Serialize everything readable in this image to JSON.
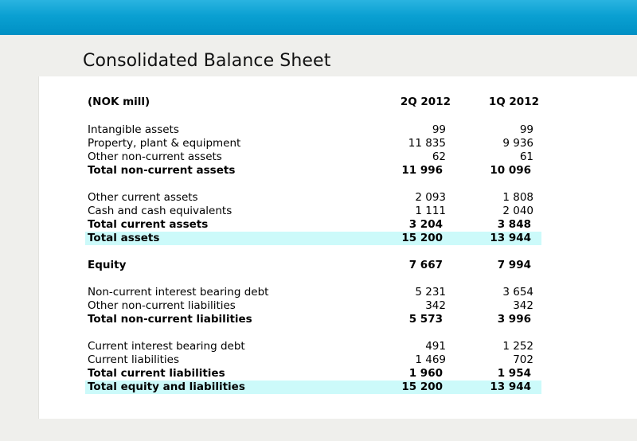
{
  "title": "Consolidated Balance Sheet",
  "header": {
    "label": "(NOK mill)",
    "col1": "2Q 2012",
    "col2": "1Q 2012"
  },
  "rows": [
    {
      "label": "Intangible assets",
      "q2": "99",
      "q1": "99"
    },
    {
      "label": "Property, plant & equipment",
      "q2": "11 835",
      "q1": "9 936"
    },
    {
      "label": "Other non-current assets",
      "q2": "62",
      "q1": "61"
    },
    {
      "label": "Total non-current assets",
      "q2": "11 996",
      "q1": "10 096"
    },
    {
      "label": "Other current assets",
      "q2": "2 093",
      "q1": "1 808"
    },
    {
      "label": "Cash and cash equivalents",
      "q2": "1 111",
      "q1": "2 040"
    },
    {
      "label": "Total current assets",
      "q2": "3 204",
      "q1": "3 848"
    },
    {
      "label": "Total assets",
      "q2": "15 200",
      "q1": "13 944"
    },
    {
      "label": "Equity",
      "q2": "7 667",
      "q1": "7 994"
    },
    {
      "label": "Non-current interest bearing debt",
      "q2": "5 231",
      "q1": "3 654"
    },
    {
      "label": "Other non-current liabilities",
      "q2": "342",
      "q1": "342"
    },
    {
      "label": "Total non-current liabilities",
      "q2": "5 573",
      "q1": "3 996"
    },
    {
      "label": "Current interest bearing debt",
      "q2": "491",
      "q1": "1 252"
    },
    {
      "label": "Current liabilities",
      "q2": "1 469",
      "q1": "702"
    },
    {
      "label": "Total current liabilities",
      "q2": "1 960",
      "q1": "1 954"
    },
    {
      "label": "Total equity and liabilities",
      "q2": "15 200",
      "q1": "13 944"
    }
  ],
  "colors": {
    "topbar": "#0aa0d2",
    "highlight": "#ccfafa",
    "band": "#efefec"
  }
}
